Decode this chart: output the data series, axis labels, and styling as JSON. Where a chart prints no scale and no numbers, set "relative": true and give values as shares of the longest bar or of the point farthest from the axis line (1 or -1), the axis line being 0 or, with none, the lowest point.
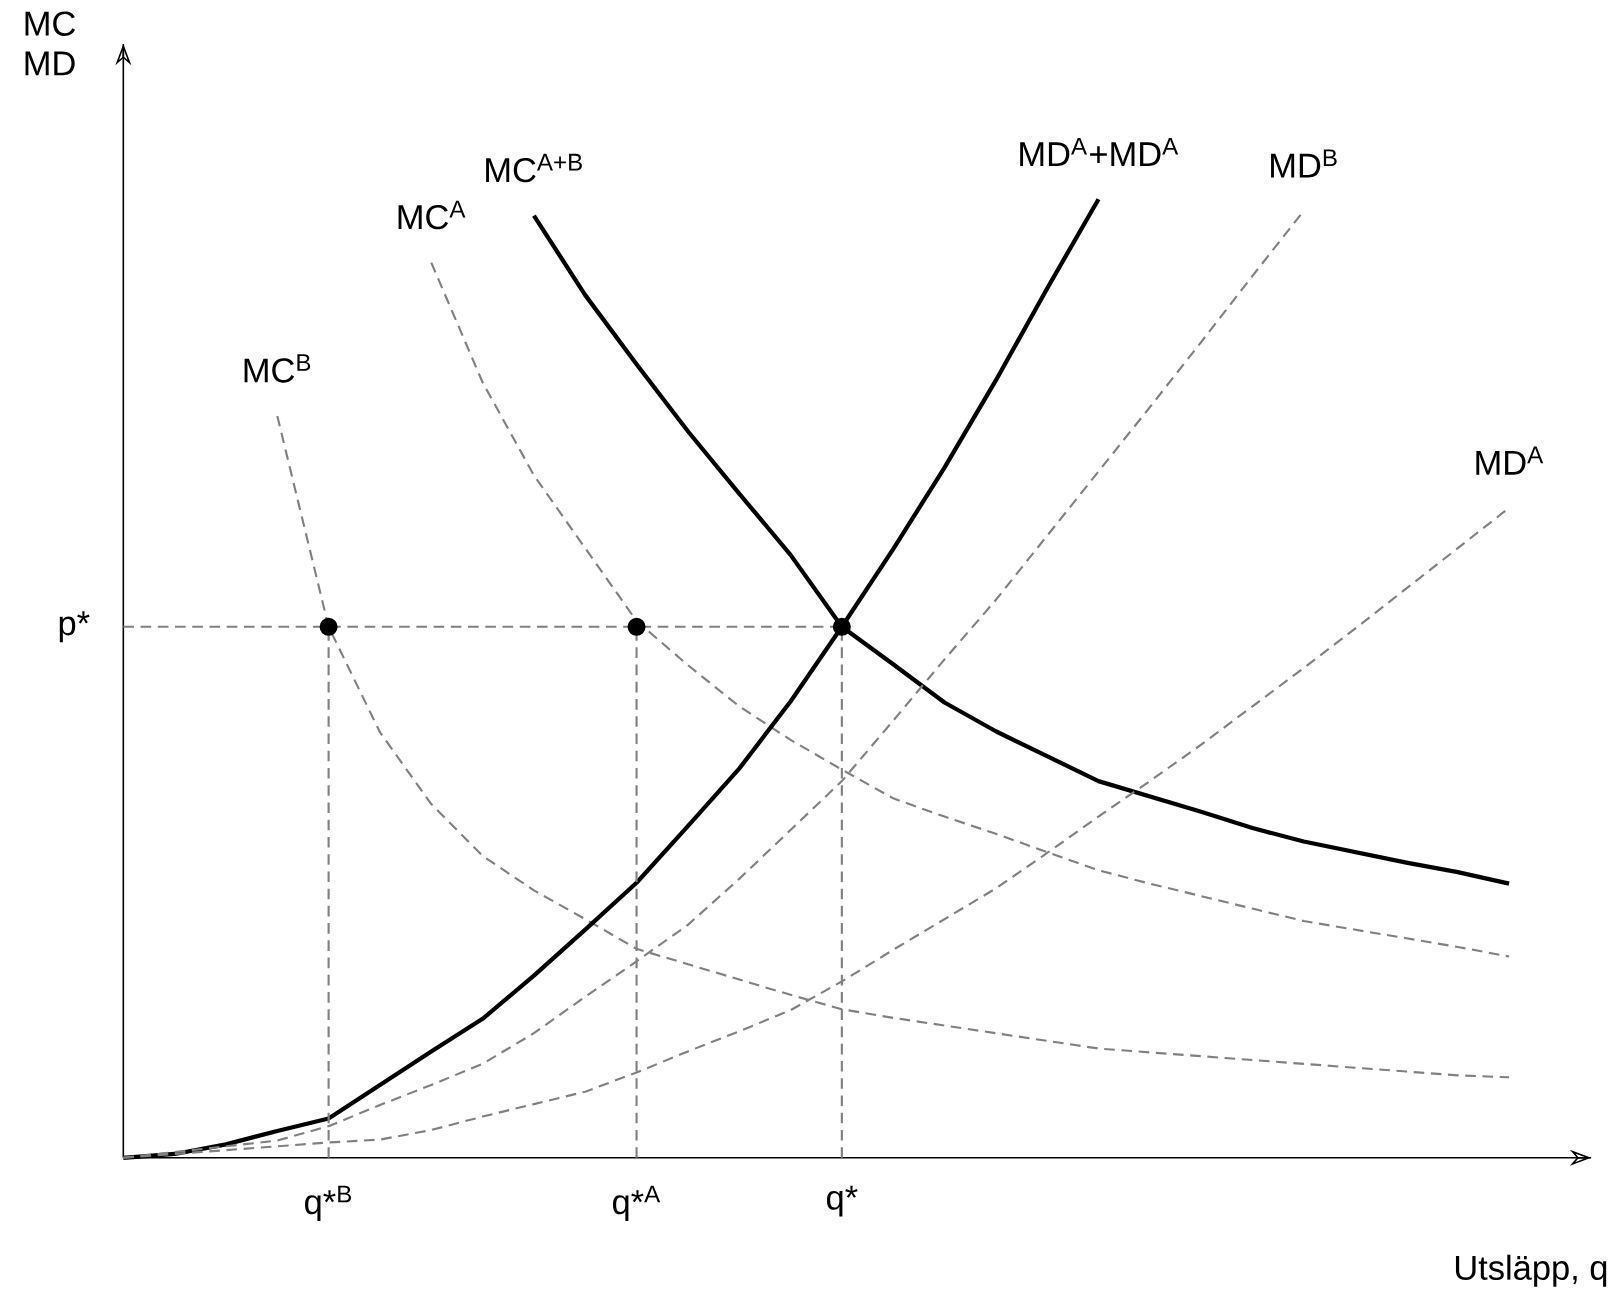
{
  "chart_data": {
    "type": "line",
    "relative": true,
    "xlabel": "Utsläpp, q",
    "ylabel": "MC MD",
    "categories": [
      null,
      null,
      null,
      null,
      "q*$^{B}$",
      null,
      null,
      null,
      null,
      null,
      "q*$^{A}$",
      null,
      null,
      null,
      "q*",
      null,
      null,
      null,
      null,
      null,
      null,
      null,
      null,
      null,
      null,
      null,
      null,
      null
    ],
    "ref_lines": [
      {
        "axis": "y",
        "value": 0.554,
        "label": "p*",
        "color": "#808080",
        "line_style": "dashed"
      }
    ],
    "series": [
      {
        "name": "MC$^{B}$",
        "color": "#808080",
        "line_style": "dashed",
        "values": [
          null,
          null,
          null,
          0.774,
          0.554,
          0.444,
          0.369,
          0.315,
          0.279,
          0.249,
          0.218,
          0.202,
          0.186,
          0.17,
          0.155,
          0.146,
          0.138,
          0.13,
          0.122,
          0.114,
          0.11,
          0.106,
          0.102,
          0.098,
          0.094,
          0.09,
          0.086,
          0.084
        ]
      },
      {
        "name": "MC$^{A}$",
        "color": "#808080",
        "line_style": "dashed",
        "values": [
          null,
          null,
          null,
          null,
          null,
          null,
          0.934,
          0.809,
          0.712,
          0.636,
          0.56,
          0.514,
          0.471,
          0.436,
          0.405,
          0.375,
          0.356,
          0.338,
          0.319,
          0.3,
          0.286,
          0.273,
          0.26,
          0.247,
          0.238,
          0.229,
          0.22,
          0.21
        ]
      },
      {
        "name": "MC$^{A+B}$",
        "color": "#000000",
        "line_style": "solid",
        "values": [
          null,
          null,
          null,
          null,
          null,
          null,
          null,
          null,
          0.983,
          0.9,
          0.828,
          0.758,
          0.693,
          0.629,
          0.554,
          0.515,
          0.475,
          0.445,
          0.419,
          0.393,
          0.377,
          0.361,
          0.344,
          0.33,
          0.319,
          0.308,
          0.298,
          0.286
        ]
      },
      {
        "name": "MD$^{A}$+MD$^{A}$",
        "color": "#000000",
        "line_style": "solid",
        "values": [
          0,
          0.004,
          0.014,
          0.028,
          0.041,
          0.076,
          0.111,
          0.145,
          0.19,
          0.238,
          0.287,
          0.346,
          0.406,
          0.476,
          0.554,
          0.635,
          0.72,
          0.811,
          0.907,
          1,
          null,
          null,
          null,
          null,
          null,
          null,
          null,
          null
        ]
      },
      {
        "name": "MD$^{B}$",
        "color": "#808080",
        "line_style": "dashed",
        "values": [
          0,
          0.006,
          0.012,
          0.018,
          0.033,
          0.055,
          0.076,
          0.098,
          0.13,
          0.168,
          0.205,
          0.243,
          0.291,
          0.342,
          0.393,
          0.456,
          0.52,
          0.582,
          0.649,
          0.716,
          0.783,
          0.851,
          0.92,
          0.988,
          null,
          null,
          null,
          null
        ]
      },
      {
        "name": "MD$^{A}$",
        "color": "#808080",
        "line_style": "dashed",
        "values": [
          0,
          0.004,
          0.008,
          0.012,
          0.016,
          0.019,
          0.029,
          0.043,
          0.056,
          0.069,
          0.089,
          0.111,
          0.132,
          0.154,
          0.184,
          0.217,
          0.249,
          0.281,
          0.318,
          0.356,
          0.393,
          0.431,
          0.471,
          0.511,
          0.552,
          0.594,
          0.636,
          0.678
        ]
      },
      {
        "type": "lollipop",
        "marker": "circle",
        "color": "#000000",
        "line_style": "dashed",
        "values": [
          null,
          null,
          null,
          null,
          0.554,
          null,
          null,
          null,
          null,
          null,
          0.554,
          null,
          null,
          null,
          0.554,
          null,
          null,
          null,
          null,
          null,
          null,
          null,
          null,
          null,
          null,
          null,
          null,
          null
        ]
      }
    ]
  }
}
